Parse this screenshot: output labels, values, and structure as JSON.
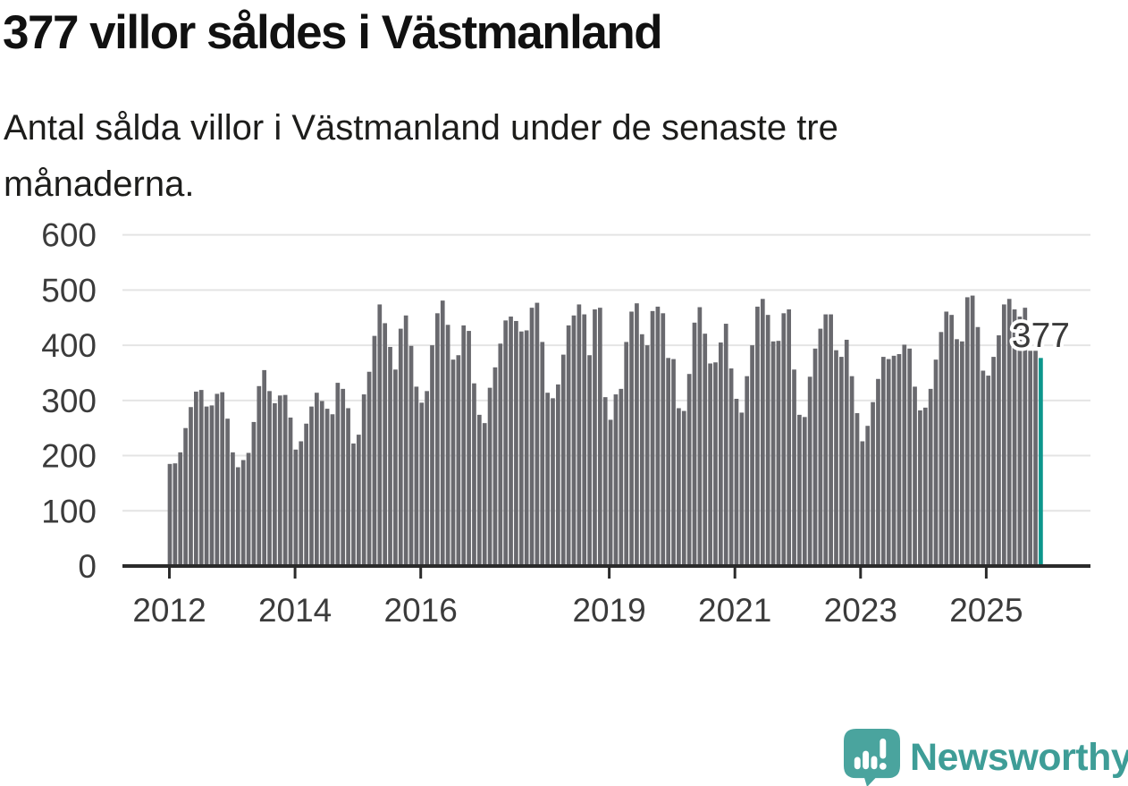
{
  "header": {
    "title": "377 villor såldes i Västmanland",
    "subtitle": "Antal sålda villor i Västmanland under de senaste tre\nmånaderna."
  },
  "chart_data": {
    "type": "bar",
    "title": "377 villor såldes i Västmanland",
    "subtitle": "Antal sålda villor i Västmanland under de senaste tre månaderna.",
    "x_start": "2012-01",
    "x_end": "2025-11",
    "x_tick_years": [
      2012,
      2014,
      2016,
      2019,
      2021,
      2023,
      2025
    ],
    "y_ticks": [
      0,
      100,
      200,
      300,
      400,
      500,
      600
    ],
    "ylim": [
      0,
      600
    ],
    "grid": true,
    "bar_color": "#69696e",
    "axis_color": "#2b2b2b",
    "grid_color": "#e4e4e4",
    "tick_label_color": "#3b3b3b",
    "series": [
      {
        "name": "Antal sålda villor, rullande tre månader",
        "values": [
          185,
          186,
          206,
          250,
          288,
          316,
          319,
          289,
          291,
          312,
          315,
          267,
          206,
          179,
          192,
          205,
          261,
          326,
          355,
          317,
          295,
          309,
          310,
          269,
          211,
          226,
          258,
          289,
          314,
          299,
          285,
          275,
          332,
          321,
          286,
          222,
          238,
          311,
          352,
          417,
          474,
          440,
          397,
          356,
          430,
          454,
          399,
          325,
          296,
          317,
          400,
          458,
          481,
          437,
          374,
          382,
          436,
          426,
          331,
          274,
          259,
          323,
          360,
          403,
          445,
          452,
          444,
          425,
          427,
          468,
          477,
          406,
          314,
          304,
          329,
          383,
          436,
          454,
          474,
          456,
          382,
          465,
          468,
          306,
          265,
          311,
          321,
          406,
          461,
          476,
          420,
          400,
          462,
          470,
          458,
          377,
          375,
          286,
          281,
          348,
          441,
          469,
          421,
          367,
          369,
          405,
          439,
          358,
          303,
          278,
          344,
          400,
          470,
          484,
          455,
          407,
          408,
          458,
          465,
          356,
          274,
          270,
          343,
          394,
          430,
          456,
          456,
          391,
          379,
          410,
          344,
          277,
          226,
          254,
          297,
          339,
          379,
          375,
          381,
          384,
          401,
          394,
          325,
          282,
          287,
          321,
          374,
          424,
          461,
          455,
          411,
          407,
          487,
          490,
          433,
          354,
          345,
          379,
          418,
          474,
          484,
          465,
          452,
          468,
          390,
          390,
          377
        ]
      }
    ],
    "highlight": {
      "index_last": true,
      "value": 377,
      "label": "377",
      "color": "#0d968c",
      "label_color": "#3a3a3a"
    }
  },
  "footer": {
    "brand": "Newsworthy",
    "brand_color": "#3E9D97",
    "logo_bubble_color": "#4AA49E"
  }
}
